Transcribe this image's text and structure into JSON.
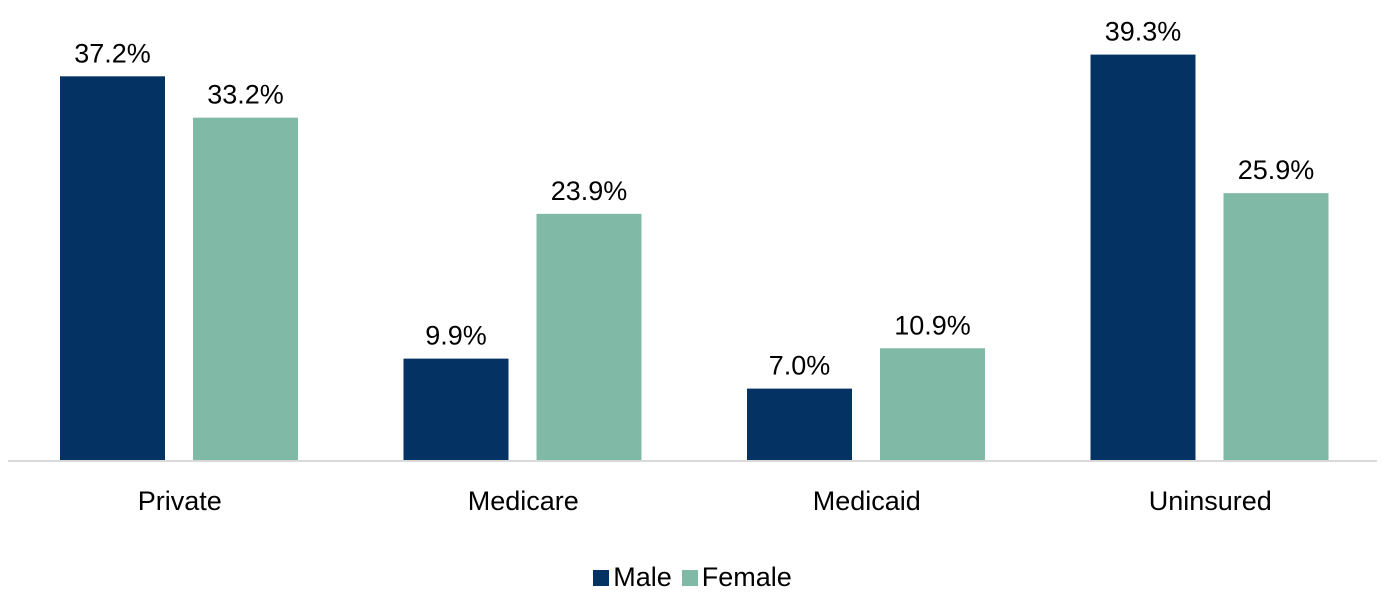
{
  "chart_data": {
    "type": "bar",
    "categories": [
      "Private",
      "Medicare",
      "Medicaid",
      "Uninsured"
    ],
    "series": [
      {
        "name": "Male",
        "values": [
          37.2,
          9.9,
          7.0,
          39.3
        ],
        "labels": [
          "37.2%",
          "9.9%",
          "7.0%",
          "39.3%"
        ],
        "color": "#043263"
      },
      {
        "name": "Female",
        "values": [
          33.2,
          23.9,
          10.9,
          25.9
        ],
        "labels": [
          "33.2%",
          "23.9%",
          "10.9%",
          "25.9%"
        ],
        "color": "#80b9a5"
      }
    ],
    "ylim": [
      0,
      44
    ],
    "grid": false,
    "legend_position": "bottom-center"
  }
}
